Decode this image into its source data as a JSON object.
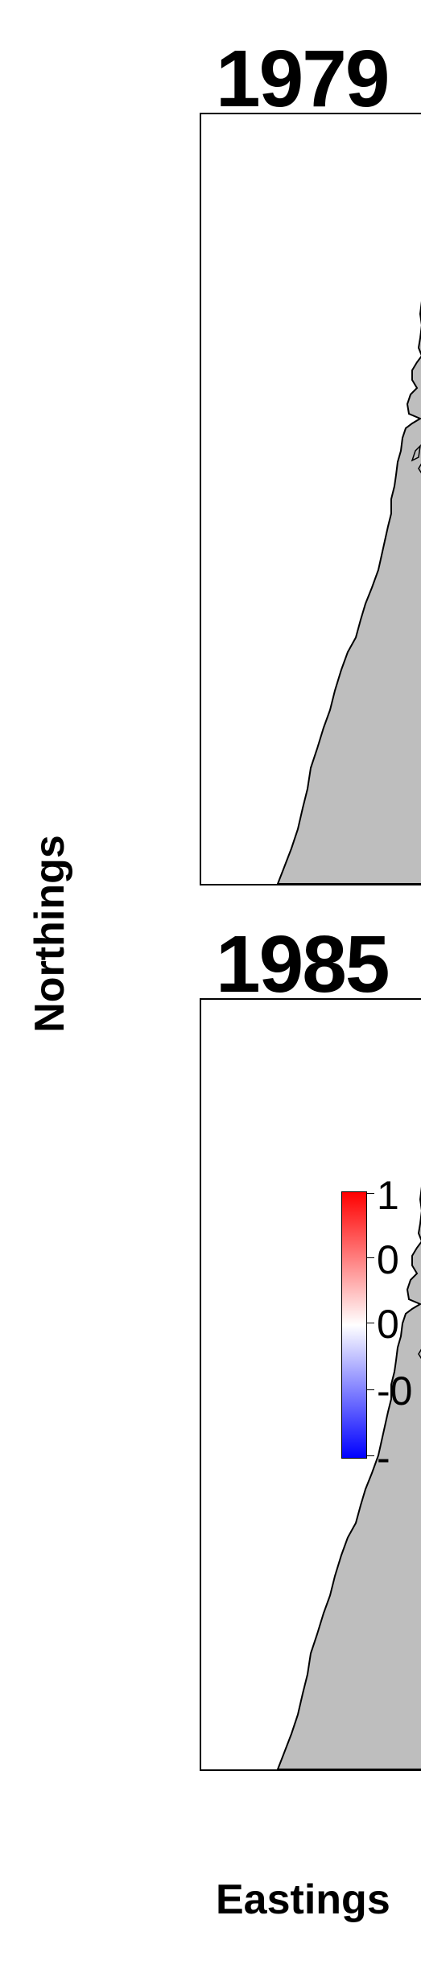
{
  "panels": [
    {
      "title": "1979"
    },
    {
      "title": "1985"
    }
  ],
  "axes": {
    "ylabel": "Northings",
    "xlabel": "Eastings"
  },
  "legend": {
    "labels": [
      "1",
      "0",
      "0",
      "-0",
      "-"
    ],
    "colors": {
      "high": "#ff0000",
      "mid": "#ffffff",
      "low": "#0000ff"
    }
  },
  "map_colors": {
    "land": "#bebebe",
    "water": "#ffffff",
    "outline": "#000000"
  }
}
